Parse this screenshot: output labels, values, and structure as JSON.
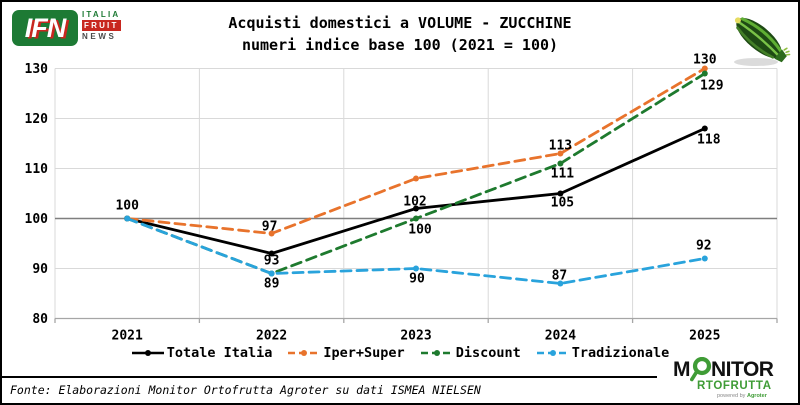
{
  "header": {
    "logo": {
      "ifn": "IFN",
      "italia": "ITALIA",
      "fruit": "FRUIT",
      "news": "NEWS"
    },
    "title_line1": "Acquisti domestici a VOLUME - ZUCCHINE",
    "title_line2": "numeri indice base 100 (2021 = 100)"
  },
  "chart_data": {
    "type": "line",
    "title": "Acquisti domestici a VOLUME - ZUCCHINE",
    "subtitle": "numeri indice base 100 (2021 = 100)",
    "categories": [
      "2021",
      "2022",
      "2023",
      "2024",
      "2025"
    ],
    "series": [
      {
        "name": "Totale Italia",
        "color": "#000000",
        "dash": "solid",
        "values": [
          100,
          93,
          102,
          105,
          118
        ],
        "labels": [
          null,
          "93",
          "102",
          "105",
          "118"
        ]
      },
      {
        "name": "Iper+Super",
        "color": "#E8732C",
        "dash": "dashed",
        "values": [
          100,
          97,
          108,
          113,
          130
        ],
        "labels": [
          null,
          "97",
          null,
          "113",
          "130"
        ]
      },
      {
        "name": "Discount",
        "color": "#1E7A2E",
        "dash": "dashed",
        "values": [
          100,
          89,
          100,
          111,
          129
        ],
        "labels": [
          null,
          "89",
          "100",
          "111",
          "129"
        ]
      },
      {
        "name": "Tradizionale",
        "color": "#29A3DC",
        "dash": "dashed",
        "values": [
          100,
          89,
          90,
          87,
          92
        ],
        "labels": [
          null,
          null,
          "90",
          "87",
          "92"
        ]
      }
    ],
    "shared_origin_label": "100",
    "ylim": [
      80,
      130
    ],
    "yticks": [
      80,
      90,
      100,
      110,
      120,
      130
    ],
    "reference_line": 100,
    "grid": true,
    "legend_position": "bottom",
    "colors": {
      "grid": "#d9d9d9",
      "axis": "#a6a6a6",
      "reference": "#7f7f7f",
      "label": "#000000"
    }
  },
  "footer": {
    "fonte": "Fonte: Elaborazioni Monitor Ortofrutta Agroter su dati ISMEA NIELSEN",
    "monitor_logo": {
      "m": "M",
      "nitor": "NITOR",
      "rtofrutta": "RTOFRUTTA",
      "powered_by": "powered by ",
      "agroter": "Agroter"
    }
  }
}
